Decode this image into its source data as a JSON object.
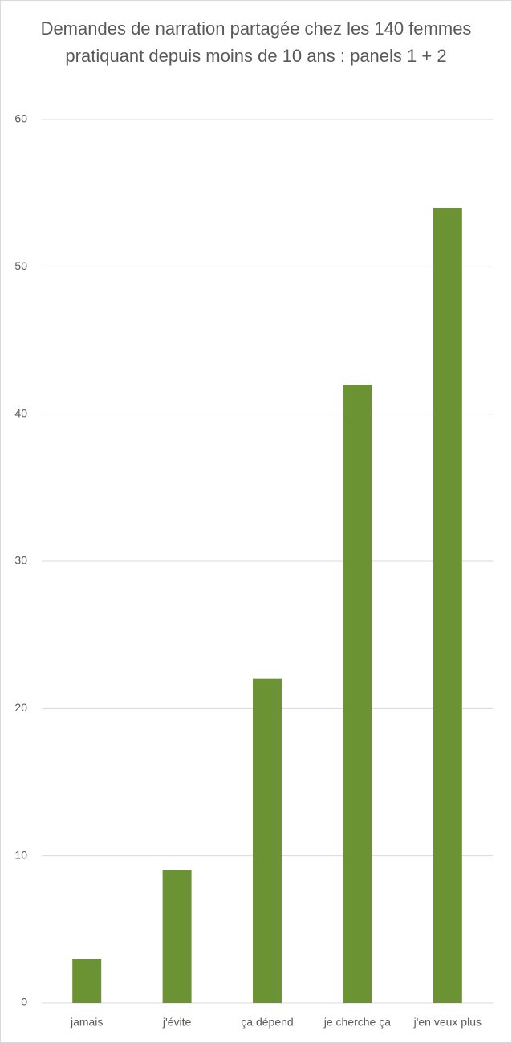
{
  "chart_data": {
    "type": "bar",
    "title": "Demandes de narration partagée chez les 140 femmes pratiquant depuis moins de 10 ans : panels 1 + 2",
    "categories": [
      "jamais",
      "j'évite",
      "ça dépend",
      "je cherche ça",
      "j'en veux plus"
    ],
    "values": [
      3,
      9,
      22,
      42,
      54
    ],
    "color": "#6b9334",
    "ylim": [
      0,
      60
    ],
    "yticks": [
      0,
      10,
      20,
      30,
      40,
      50,
      60
    ],
    "grid": true
  }
}
